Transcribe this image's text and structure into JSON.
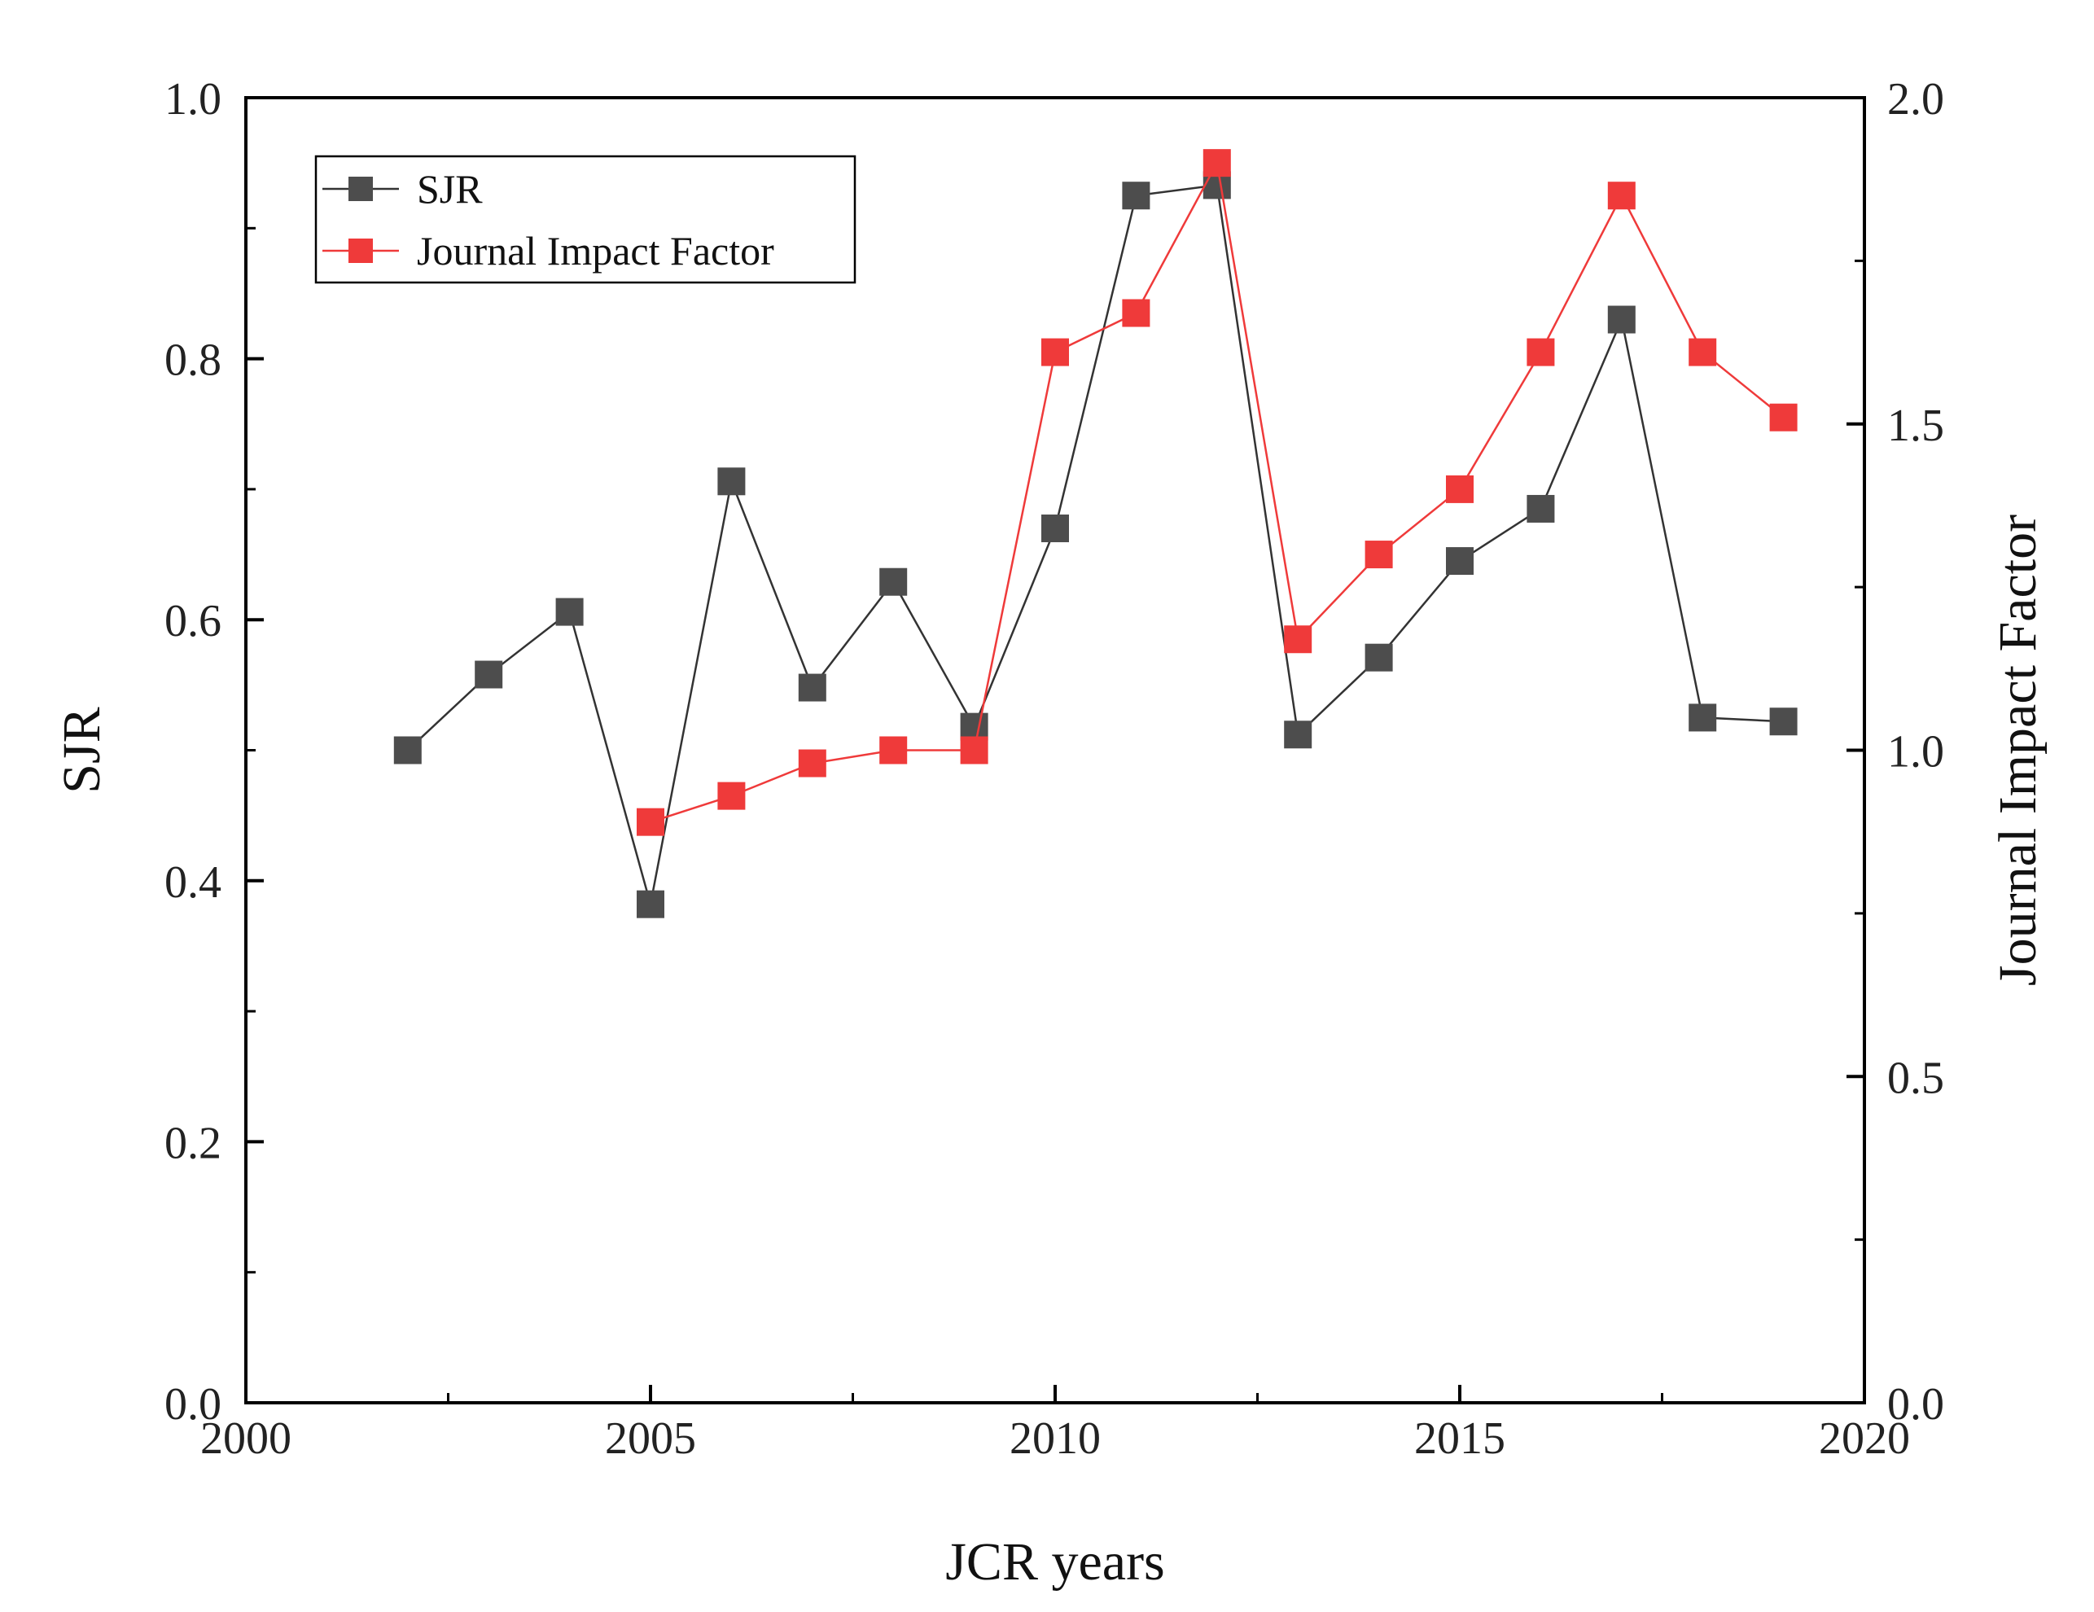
{
  "chart_data": {
    "type": "line",
    "title": "",
    "xlabel": "JCR years",
    "ylabel": "SJR",
    "y2label": "Journal Impact Factor",
    "xlim": [
      2000,
      2020
    ],
    "ylim": [
      0.0,
      1.0
    ],
    "y2lim": [
      0.0,
      2.0
    ],
    "xticks": [
      2000,
      2005,
      2010,
      2015,
      2020
    ],
    "yticks": [
      0.0,
      0.2,
      0.4,
      0.6,
      0.8,
      1.0
    ],
    "y2ticks": [
      0.0,
      0.5,
      1.0,
      1.5,
      2.0
    ],
    "xtick_labels": [
      "2000",
      "2005",
      "2010",
      "2015",
      "2020"
    ],
    "ytick_labels": [
      "0.0",
      "0.2",
      "0.4",
      "0.6",
      "0.8",
      "1.0"
    ],
    "y2tick_labels": [
      "0.0",
      "0.5",
      "1.0",
      "1.5",
      "2.0"
    ],
    "grid": false,
    "legend_position": "top-left",
    "series": [
      {
        "name": "SJR",
        "axis": "left",
        "color": "#4d4d4d",
        "line_color": "#333333",
        "marker": "square",
        "x": [
          2002,
          2003,
          2004,
          2005,
          2006,
          2007,
          2008,
          2009,
          2010,
          2011,
          2012,
          2013,
          2014,
          2015,
          2016,
          2017,
          2018,
          2019
        ],
        "values": [
          0.5,
          0.558,
          0.606,
          0.382,
          0.706,
          0.548,
          0.629,
          0.518,
          0.67,
          0.925,
          0.933,
          0.512,
          0.571,
          0.645,
          0.685,
          0.83,
          0.525,
          0.522
        ]
      },
      {
        "name": "Journal Impact Factor",
        "axis": "right",
        "color": "#ef3a3a",
        "line_color": "#ef3a3a",
        "marker": "square",
        "x": [
          2005,
          2006,
          2007,
          2008,
          2009,
          2010,
          2011,
          2012,
          2013,
          2014,
          2015,
          2016,
          2017,
          2018,
          2019
        ],
        "values": [
          0.89,
          0.93,
          0.98,
          1.0,
          1.0,
          1.61,
          1.67,
          1.9,
          1.17,
          1.3,
          1.4,
          1.61,
          1.85,
          1.61,
          1.51
        ]
      }
    ]
  }
}
